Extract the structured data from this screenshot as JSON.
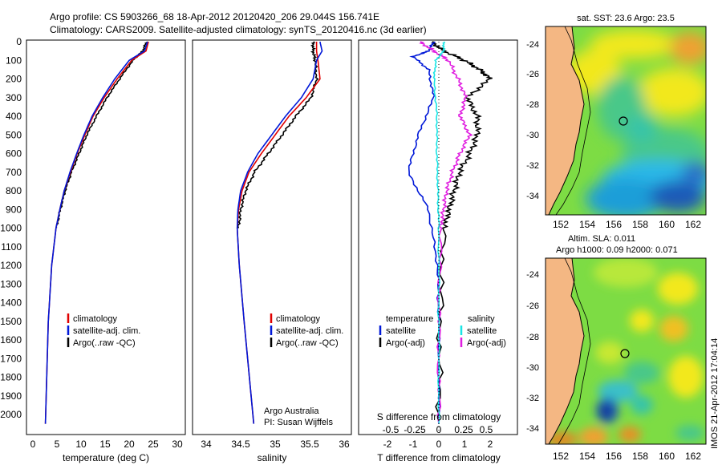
{
  "title": {
    "line1": "Argo profile: CS 5903266_68 18-Apr-2012 20120420_206 29.044S 156.741E",
    "line2": "Climatology: CARS2009. Satellite-adjusted climatology: synTS_20120416.nc (3d earlier)"
  },
  "colors": {
    "climatology": "#e00000",
    "satellite": "#0018d8",
    "argo": "#000000",
    "cyan": "#19e5e5",
    "magenta": "#e01ee0",
    "land": "#f4b783"
  },
  "depth_ticks": [
    "0",
    "100",
    "200",
    "300",
    "400",
    "500",
    "600",
    "700",
    "800",
    "900",
    "1000",
    "1100",
    "1200",
    "1300",
    "1400",
    "1500",
    "1600",
    "1700",
    "1800",
    "1900",
    "2000"
  ],
  "panels": {
    "temperature": {
      "xlabel": "temperature (deg C)",
      "xticks": [
        "0",
        "5",
        "10",
        "15",
        "20",
        "25",
        "30"
      ],
      "legend": [
        "climatology",
        "satellite-adj. clim.",
        "Argo(..raw -QC)"
      ]
    },
    "salinity": {
      "xlabel": "salinity",
      "xticks": [
        "34",
        "34.5",
        "35",
        "35.5",
        "36"
      ],
      "legend": [
        "climatology",
        "satellite-adj. clim.",
        "Argo(..raw -QC)"
      ],
      "credit1": "Argo Australia",
      "credit2": "PI: Susan Wijffels"
    },
    "difference": {
      "xlabel": "T difference from climatology",
      "top_label": "S difference from climatology",
      "s_ticks": [
        "-0.5",
        "-0.25",
        "0",
        "0.25",
        "0.5"
      ],
      "t_ticks": [
        "-2",
        "-1",
        "0",
        "1",
        "2"
      ],
      "legend_temp_title": "temperature",
      "legend_sal_title": "salinity",
      "legend_temp": [
        "satellite",
        "Argo(-adj)"
      ],
      "legend_sal": [
        "satellite",
        "Argo(-adj)"
      ]
    }
  },
  "maps": {
    "sst_title": "sat. SST: 23.6  Argo: 23.5",
    "sla_title1": "Altim. SLA: 0.011",
    "sla_title2": "Argo h1000: 0.09 h2000: 0.071",
    "lat_ticks": [
      "-24",
      "-26",
      "-28",
      "-30",
      "-32",
      "-34"
    ],
    "lon_ticks": [
      "152",
      "154",
      "156",
      "158",
      "160",
      "162"
    ],
    "watermark": "IMOS 21-Apr-2012 17:04:14"
  },
  "chart_data": {
    "type": "line",
    "ylabel": "depth (dbar)",
    "ylim": [
      2050,
      0
    ],
    "temperature": {
      "xlim": [
        -2,
        31
      ],
      "series": [
        {
          "name": "climatology",
          "depth": [
            0,
            50,
            100,
            200,
            300,
            400,
            500,
            600,
            700,
            800,
            900,
            1000,
            1200,
            1500,
            2050
          ],
          "values": [
            24,
            23.5,
            20.5,
            17.5,
            14.8,
            12.5,
            10.8,
            9.2,
            7.8,
            6.5,
            5.6,
            4.8,
            3.9,
            3.2,
            2.6
          ]
        },
        {
          "name": "satellite-adj. clim.",
          "depth": [
            0,
            50,
            100,
            200,
            300,
            400,
            500,
            600,
            700,
            800,
            900,
            1000,
            1200,
            1500,
            2050
          ],
          "values": [
            23.8,
            23.2,
            20,
            17,
            14.5,
            12.3,
            10.6,
            9.1,
            7.7,
            6.5,
            5.6,
            4.8,
            3.9,
            3.2,
            2.6
          ]
        },
        {
          "name": "Argo(..raw -QC)",
          "depth": [
            0,
            50,
            100,
            200,
            300,
            400,
            500,
            600,
            700,
            800,
            900,
            1000
          ],
          "values": [
            23.6,
            22.8,
            20.8,
            18,
            15.4,
            13.2,
            11.2,
            9.6,
            8.0,
            6.7,
            5.7,
            4.9
          ]
        }
      ]
    },
    "salinity": {
      "xlim": [
        33.8,
        36.05
      ],
      "series": [
        {
          "name": "climatology",
          "depth": [
            0,
            50,
            100,
            200,
            300,
            400,
            500,
            600,
            700,
            800,
            900,
            1000,
            1200,
            1500,
            2050
          ],
          "values": [
            35.6,
            35.6,
            35.62,
            35.65,
            35.45,
            35.2,
            35.0,
            34.8,
            34.62,
            34.52,
            34.47,
            34.45,
            34.48,
            34.55,
            34.69
          ]
        },
        {
          "name": "satellite-adj. clim.",
          "depth": [
            0,
            50,
            100,
            200,
            300,
            400,
            500,
            600,
            700,
            800,
            900,
            1000,
            1200,
            1500,
            2050
          ],
          "values": [
            35.65,
            35.68,
            35.6,
            35.55,
            35.38,
            35.15,
            34.95,
            34.75,
            34.6,
            34.5,
            34.46,
            34.45,
            34.48,
            34.55,
            34.69
          ]
        },
        {
          "name": "Argo(..raw -QC)",
          "depth": [
            0,
            50,
            100,
            200,
            300,
            400,
            500,
            600,
            700,
            800,
            900,
            1000
          ],
          "values": [
            35.55,
            35.55,
            35.58,
            35.6,
            35.52,
            35.3,
            35.1,
            34.9,
            34.7,
            34.57,
            34.5,
            34.47
          ]
        }
      ]
    },
    "difference": {
      "t_xlim": [
        -2.8,
        2.8
      ],
      "series": [
        {
          "name": "temperature satellite",
          "depth": [
            0,
            50,
            80,
            150,
            300,
            500,
            700,
            900,
            1200,
            1500,
            2050
          ],
          "values": [
            -0.2,
            -0.4,
            -1.0,
            -0.4,
            -0.2,
            -0.8,
            -1.2,
            -0.4,
            -0.05,
            0,
            0
          ]
        },
        {
          "name": "temperature Argo(-adj)",
          "depth": [
            0,
            50,
            100,
            150,
            200,
            300,
            400,
            500,
            600,
            700,
            800,
            900,
            1000,
            1500,
            2050
          ],
          "values": [
            -0.3,
            0.2,
            1.0,
            1.6,
            2.0,
            1.1,
            1.5,
            1.5,
            1.2,
            0.8,
            0.6,
            0.4,
            0.2,
            0.05,
            0
          ]
        },
        {
          "name": "salinity satellite",
          "depth": [
            0,
            50,
            100,
            200,
            400,
            600,
            800,
            1000,
            1500,
            2050
          ],
          "values": [
            0.05,
            0.05,
            -0.03,
            -0.05,
            -0.02,
            -0.02,
            -0.01,
            0,
            0,
            0
          ]
        },
        {
          "name": "salinity Argo(-adj)",
          "depth": [
            0,
            50,
            100,
            200,
            300,
            400,
            500,
            600,
            700,
            800,
            900,
            1000,
            1500,
            2050
          ],
          "values": [
            -0.2,
            -0.05,
            0.1,
            0.2,
            0.28,
            0.22,
            0.32,
            0.22,
            0.14,
            0.08,
            0.05,
            0.02,
            0,
            0
          ]
        }
      ]
    },
    "map_profile_position": {
      "lon": 156.741,
      "lat": -29.044
    }
  }
}
